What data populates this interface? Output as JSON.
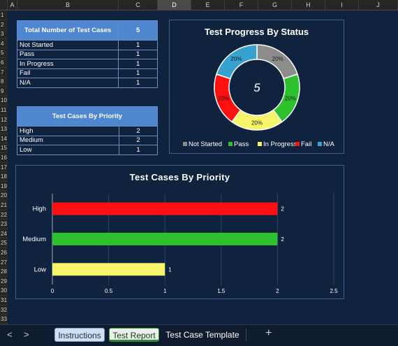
{
  "column_headers": [
    "A",
    "B",
    "C",
    "D",
    "E",
    "F",
    "G",
    "H",
    "I",
    "J"
  ],
  "active_column": "D",
  "row_headers": [
    "1",
    "2",
    "3",
    "4",
    "5",
    "6",
    "7",
    "8",
    "9",
    "10",
    "11",
    "12",
    "13",
    "14",
    "15",
    "16",
    "17",
    "18",
    "19",
    "20",
    "21",
    "22",
    "23",
    "24",
    "25",
    "26",
    "27",
    "28",
    "29",
    "30",
    "31",
    "32",
    "33"
  ],
  "status_table": {
    "header_label": "Total Number of Test Cases",
    "header_value": "5",
    "rows": [
      {
        "label": "Not Started",
        "value": "1"
      },
      {
        "label": "Pass",
        "value": "1"
      },
      {
        "label": "In Progress",
        "value": "1"
      },
      {
        "label": "Fail",
        "value": "1"
      },
      {
        "label": "N/A",
        "value": "1"
      }
    ]
  },
  "priority_table": {
    "header_label": "Test Cases By Priority",
    "rows": [
      {
        "label": "High",
        "value": "2"
      },
      {
        "label": "Medium",
        "value": "2"
      },
      {
        "label": "Low",
        "value": "1"
      }
    ]
  },
  "colors": {
    "not_started": "#8c8c8c",
    "pass": "#2ec12e",
    "in_progress": "#f6f56a",
    "fail": "#ff0f0f",
    "na": "#37a2cf"
  },
  "chart_data": [
    {
      "type": "pie",
      "title": "Test Progress By Status",
      "center_label": "5",
      "categories": [
        "Not Started",
        "Pass",
        "In Progress",
        "Fail",
        "N/A"
      ],
      "values": [
        1,
        1,
        1,
        1,
        1
      ],
      "data_labels": [
        "20%",
        "20%",
        "20%",
        "20%",
        "20%"
      ],
      "colors": [
        "#8c8c8c",
        "#2ec12e",
        "#f6f56a",
        "#ff0f0f",
        "#37a2cf"
      ],
      "legend": "bottom"
    },
    {
      "type": "bar",
      "orientation": "horizontal",
      "title": "Test Cases By Priority",
      "categories": [
        "High",
        "Medium",
        "Low"
      ],
      "values": [
        2,
        2,
        1
      ],
      "data_labels": [
        "2",
        "2",
        "1"
      ],
      "colors": [
        "#ff0f0f",
        "#2ec12e",
        "#f6f56a"
      ],
      "xlim": [
        0,
        2.5
      ],
      "xticks": [
        "0",
        "0.5",
        "1",
        "1.5",
        "2",
        "2.5"
      ],
      "grid": true
    }
  ],
  "tabs": [
    {
      "label": "Instructions"
    },
    {
      "label": "Test Report"
    },
    {
      "label": "Test Case Template"
    }
  ],
  "add_sheet_label": "+",
  "nav_prev": "<",
  "nav_next": ">"
}
